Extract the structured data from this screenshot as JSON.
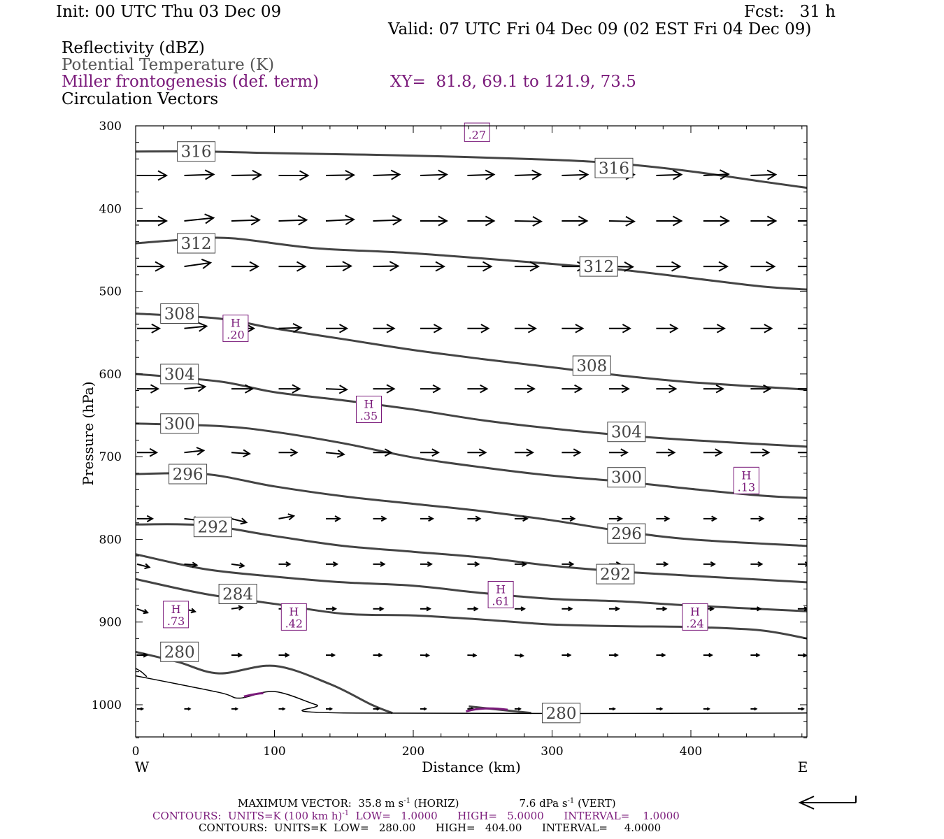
{
  "header": {
    "init": "Init: 00 UTC Thu 03 Dec 09",
    "fcst": "Fcst:   31 h",
    "valid": "Valid: 07 UTC Fri 04 Dec 09 (02 EST Fri 04 Dec 09)",
    "field1": "Reflectivity (dBZ)",
    "field2": "Potential Temperature (K)",
    "field3": "Miller frontogenesis (def. term)",
    "xy": "XY=  81.8, 69.1 to 121.9, 73.5",
    "field4": "Circulation Vectors"
  },
  "footer": {
    "max_vector_label": "MAXIMUM VECTOR:  35.8 m s",
    "max_vector_horiz": "-1",
    "max_vector_horiz_tail": " (HORIZ)",
    "max_vector_vert": "7.6 dPa s",
    "max_vector_vert_exp": "-1",
    "max_vector_vert_tail": " (VERT)",
    "contours1_a": "CONTOURS:  UNITS=K (100 km h)",
    "contours1_exp": "-1",
    "contours1_b": "  LOW=   1.0000      HIGH=   5.0000      INTERVAL=    1.0000",
    "contours2": "CONTOURS:  UNITS=K  LOW=   280.00      HIGH=   404.00      INTERVAL=     4.0000"
  },
  "colors": {
    "theta": "#444444",
    "frontogenesis": "#7a1a7a",
    "vectors": "#000000"
  },
  "chart_data": {
    "type": "cross-section",
    "xlabel": "Distance (km)",
    "ylabel": "Pressure (hPa)",
    "x_ticks": [
      0,
      100,
      200,
      300,
      400
    ],
    "y_ticks": [
      300,
      400,
      500,
      600,
      700,
      800,
      900,
      1000
    ],
    "xlim": [
      0,
      484
    ],
    "ylim": [
      1040,
      300
    ],
    "left_end_label": "W",
    "right_end_label": "E",
    "isentropes": [
      {
        "theta": 316,
        "points": [
          [
            0,
            331
          ],
          [
            50,
            331
          ],
          [
            100,
            333
          ],
          [
            200,
            336
          ],
          [
            300,
            341
          ],
          [
            350,
            346
          ],
          [
            400,
            355
          ],
          [
            450,
            367
          ],
          [
            484,
            375
          ]
        ]
      },
      {
        "theta": 312,
        "points": [
          [
            0,
            442
          ],
          [
            40,
            437
          ],
          [
            70,
            436
          ],
          [
            130,
            448
          ],
          [
            200,
            454
          ],
          [
            300,
            467
          ],
          [
            350,
            474
          ],
          [
            400,
            484
          ],
          [
            450,
            494
          ],
          [
            484,
            498
          ]
        ]
      },
      {
        "theta": 308,
        "points": [
          [
            0,
            527
          ],
          [
            60,
            533
          ],
          [
            100,
            545
          ],
          [
            150,
            558
          ],
          [
            200,
            571
          ],
          [
            250,
            582
          ],
          [
            300,
            592
          ],
          [
            350,
            602
          ],
          [
            400,
            610
          ],
          [
            484,
            619
          ]
        ]
      },
      {
        "theta": 304,
        "points": [
          [
            0,
            600
          ],
          [
            60,
            609
          ],
          [
            100,
            622
          ],
          [
            150,
            632
          ],
          [
            200,
            643
          ],
          [
            250,
            656
          ],
          [
            300,
            666
          ],
          [
            350,
            674
          ],
          [
            400,
            680
          ],
          [
            484,
            688
          ]
        ]
      },
      {
        "theta": 300,
        "points": [
          [
            0,
            660
          ],
          [
            60,
            663
          ],
          [
            100,
            670
          ],
          [
            150,
            684
          ],
          [
            200,
            701
          ],
          [
            250,
            713
          ],
          [
            300,
            723
          ],
          [
            350,
            730
          ],
          [
            400,
            739
          ],
          [
            450,
            747
          ],
          [
            484,
            750
          ]
        ]
      },
      {
        "theta": 296,
        "points": [
          [
            0,
            721
          ],
          [
            50,
            721
          ],
          [
            100,
            736
          ],
          [
            150,
            748
          ],
          [
            200,
            757
          ],
          [
            250,
            766
          ],
          [
            300,
            777
          ],
          [
            350,
            790
          ],
          [
            400,
            800
          ],
          [
            484,
            808
          ]
        ]
      },
      {
        "theta": 292,
        "points": [
          [
            0,
            782
          ],
          [
            50,
            783
          ],
          [
            100,
            796
          ],
          [
            150,
            808
          ],
          [
            200,
            815
          ],
          [
            250,
            822
          ],
          [
            300,
            832
          ],
          [
            350,
            839
          ],
          [
            400,
            844
          ],
          [
            484,
            852
          ]
        ]
      },
      {
        "theta": 288,
        "points": [
          [
            0,
            818
          ],
          [
            50,
            836
          ],
          [
            100,
            845
          ],
          [
            150,
            852
          ],
          [
            200,
            856
          ],
          [
            250,
            865
          ],
          [
            300,
            872
          ],
          [
            350,
            875
          ],
          [
            400,
            880
          ],
          [
            484,
            887
          ]
        ]
      },
      {
        "theta": 284,
        "points": [
          [
            0,
            848
          ],
          [
            50,
            866
          ],
          [
            100,
            878
          ],
          [
            150,
            890
          ],
          [
            200,
            892
          ],
          [
            250,
            897
          ],
          [
            300,
            903
          ],
          [
            350,
            905
          ],
          [
            400,
            906
          ],
          [
            450,
            910
          ],
          [
            484,
            920
          ]
        ]
      },
      {
        "theta": 280,
        "points": [
          [
            0,
            936
          ],
          [
            30,
            948
          ],
          [
            60,
            962
          ],
          [
            100,
            953
          ],
          [
            140,
            975
          ],
          [
            170,
            1000
          ],
          [
            185,
            1010
          ]
        ]
      },
      {
        "theta": 280,
        "points": [
          [
            240,
            1002
          ],
          [
            285,
            1010
          ]
        ]
      }
    ],
    "isentrope_labels": [
      {
        "text": "316",
        "x": 30,
        "p": 331
      },
      {
        "text": "316",
        "x": 331,
        "p": 351
      },
      {
        "text": "312",
        "x": 30,
        "p": 442
      },
      {
        "text": "312",
        "x": 320,
        "p": 470
      },
      {
        "text": "308",
        "x": 18,
        "p": 527
      },
      {
        "text": "308",
        "x": 315,
        "p": 590
      },
      {
        "text": "304",
        "x": 18,
        "p": 600
      },
      {
        "text": "304",
        "x": 340,
        "p": 670
      },
      {
        "text": "300",
        "x": 18,
        "p": 660
      },
      {
        "text": "300",
        "x": 340,
        "p": 725
      },
      {
        "text": "296",
        "x": 24,
        "p": 721
      },
      {
        "text": "296",
        "x": 340,
        "p": 793
      },
      {
        "text": "292",
        "x": 42,
        "p": 785
      },
      {
        "text": "292",
        "x": 332,
        "p": 842
      },
      {
        "text": "284",
        "x": 60,
        "p": 866
      },
      {
        "text": "280",
        "x": 18,
        "p": 936
      },
      {
        "text": "280",
        "x": 293,
        "p": 1010
      }
    ],
    "terrain": [
      [
        0,
        965
      ],
      [
        60,
        985
      ],
      [
        75,
        992
      ],
      [
        100,
        984
      ],
      [
        130,
        1000
      ],
      [
        150,
        1010
      ],
      [
        484,
        1010
      ]
    ],
    "frontogenesis_maxima": [
      {
        "label": "H",
        "value": ".27",
        "x": 246,
        "p": 302
      },
      {
        "label": "H",
        "value": ".20",
        "x": 72,
        "p": 544
      },
      {
        "label": "H",
        "value": ".35",
        "x": 168,
        "p": 642
      },
      {
        "label": "H",
        "value": ".13",
        "x": 440,
        "p": 728
      },
      {
        "label": "H",
        "value": ".61",
        "x": 263,
        "p": 866
      },
      {
        "label": "H",
        "value": ".73",
        "x": 29,
        "p": 890
      },
      {
        "label": "H",
        "value": ".42",
        "x": 114,
        "p": 893
      },
      {
        "label": "H",
        "value": ".24",
        "x": 403,
        "p": 893
      }
    ],
    "vector_rows": [
      {
        "p": 360,
        "lens": [
          42,
          42,
          42,
          42,
          40,
          38,
          38,
          38,
          37,
          37,
          36,
          36,
          36,
          36,
          36
        ],
        "angles": [
          0,
          -2,
          -1,
          0,
          -1,
          -2,
          -2,
          -2,
          -2,
          -2,
          -2,
          -2,
          -3,
          -2,
          0
        ]
      },
      {
        "p": 415,
        "lens": [
          42,
          42,
          40,
          40,
          40,
          40,
          38,
          38,
          38,
          36,
          36,
          36,
          36,
          36,
          36
        ],
        "angles": [
          0,
          -6,
          -2,
          -2,
          -3,
          -2,
          0,
          0,
          1,
          0,
          1,
          0,
          0,
          0,
          0
        ]
      },
      {
        "p": 470,
        "lens": [
          38,
          38,
          38,
          38,
          36,
          36,
          34,
          34,
          34,
          34,
          34,
          34,
          34,
          34,
          34
        ],
        "angles": [
          0,
          -8,
          0,
          0,
          -1,
          -1,
          0,
          0,
          0,
          0,
          1,
          0,
          0,
          0,
          0
        ]
      },
      {
        "p": 545,
        "lens": [
          32,
          32,
          32,
          32,
          30,
          30,
          30,
          30,
          30,
          30,
          30,
          30,
          30,
          30,
          30
        ],
        "angles": [
          0,
          -6,
          0,
          -2,
          0,
          0,
          0,
          0,
          0,
          0,
          0,
          0,
          0,
          0,
          0
        ]
      },
      {
        "p": 618,
        "lens": [
          30,
          30,
          30,
          30,
          30,
          30,
          28,
          28,
          28,
          28,
          28,
          28,
          28,
          28,
          28
        ],
        "angles": [
          0,
          -6,
          0,
          0,
          2,
          0,
          0,
          0,
          0,
          0,
          0,
          0,
          0,
          0,
          0
        ]
      },
      {
        "p": 695,
        "lens": [
          28,
          28,
          26,
          26,
          26,
          26,
          26,
          26,
          26,
          26,
          26,
          26,
          26,
          26,
          26
        ],
        "angles": [
          0,
          -6,
          4,
          0,
          6,
          0,
          0,
          0,
          0,
          0,
          0,
          0,
          0,
          0,
          0
        ]
      },
      {
        "p": 775,
        "lens": [
          22,
          22,
          22,
          22,
          20,
          18,
          18,
          18,
          18,
          18,
          18,
          18,
          18,
          18,
          18
        ],
        "angles": [
          0,
          6,
          14,
          -10,
          0,
          0,
          0,
          0,
          0,
          0,
          0,
          0,
          0,
          0,
          0
        ]
      },
      {
        "p": 830,
        "lens": [
          18,
          18,
          18,
          16,
          16,
          16,
          16,
          16,
          16,
          16,
          16,
          16,
          16,
          16,
          16
        ],
        "angles": [
          14,
          4,
          8,
          0,
          0,
          0,
          0,
          0,
          0,
          0,
          0,
          0,
          0,
          0,
          0
        ]
      },
      {
        "p": 884,
        "lens": [
          16,
          16,
          16,
          16,
          14,
          14,
          14,
          14,
          14,
          14,
          14,
          14,
          14,
          14,
          14
        ],
        "angles": [
          20,
          14,
          -8,
          0,
          0,
          0,
          0,
          0,
          0,
          0,
          0,
          0,
          0,
          0,
          0
        ]
      },
      {
        "p": 940,
        "lens": [
          14,
          14,
          14,
          14,
          12,
          12,
          12,
          12,
          12,
          12,
          12,
          12,
          12,
          12,
          12
        ],
        "angles": [
          0,
          0,
          0,
          0,
          0,
          0,
          2,
          2,
          4,
          0,
          0,
          0,
          0,
          0,
          2
        ]
      },
      {
        "p": 1005,
        "lens": [
          8,
          8,
          8,
          8,
          8,
          8,
          8,
          8,
          8,
          8,
          8,
          8,
          8,
          8,
          8
        ],
        "angles": [
          0,
          0,
          0,
          0,
          0,
          0,
          0,
          0,
          0,
          0,
          0,
          0,
          0,
          0,
          0
        ]
      }
    ]
  }
}
